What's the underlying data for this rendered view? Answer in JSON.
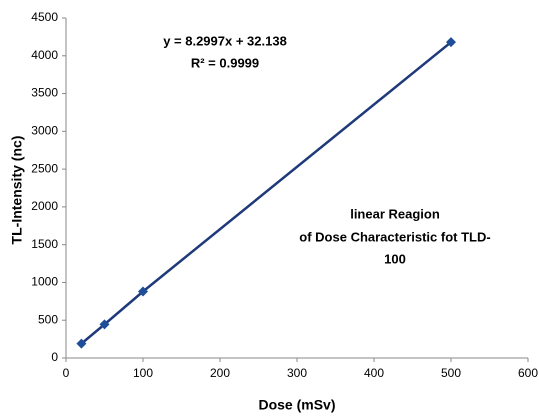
{
  "chart_data": {
    "type": "scatter",
    "x_label": "Dose (mSv)",
    "y_label": "TL-Intensity (nc)",
    "annotations": [
      "y = 8.2997x + 32.138",
      "R² = 0.9999",
      "linear Reagion",
      "of Dose Characteristic fot TLD-",
      "100"
    ],
    "x": [
      20,
      50,
      100,
      500
    ],
    "values": [
      190,
      445,
      880,
      4180
    ],
    "color": "#1f4e99",
    "line_color": "#1f3a7a",
    "xlim": [
      0,
      600
    ],
    "xticks": [
      0,
      100,
      200,
      300,
      400,
      500,
      600
    ],
    "ylim": [
      0,
      4500
    ],
    "yticks": [
      0,
      500,
      1000,
      1500,
      2000,
      2500,
      3000,
      3500,
      4000,
      4500
    ],
    "grid": false
  }
}
